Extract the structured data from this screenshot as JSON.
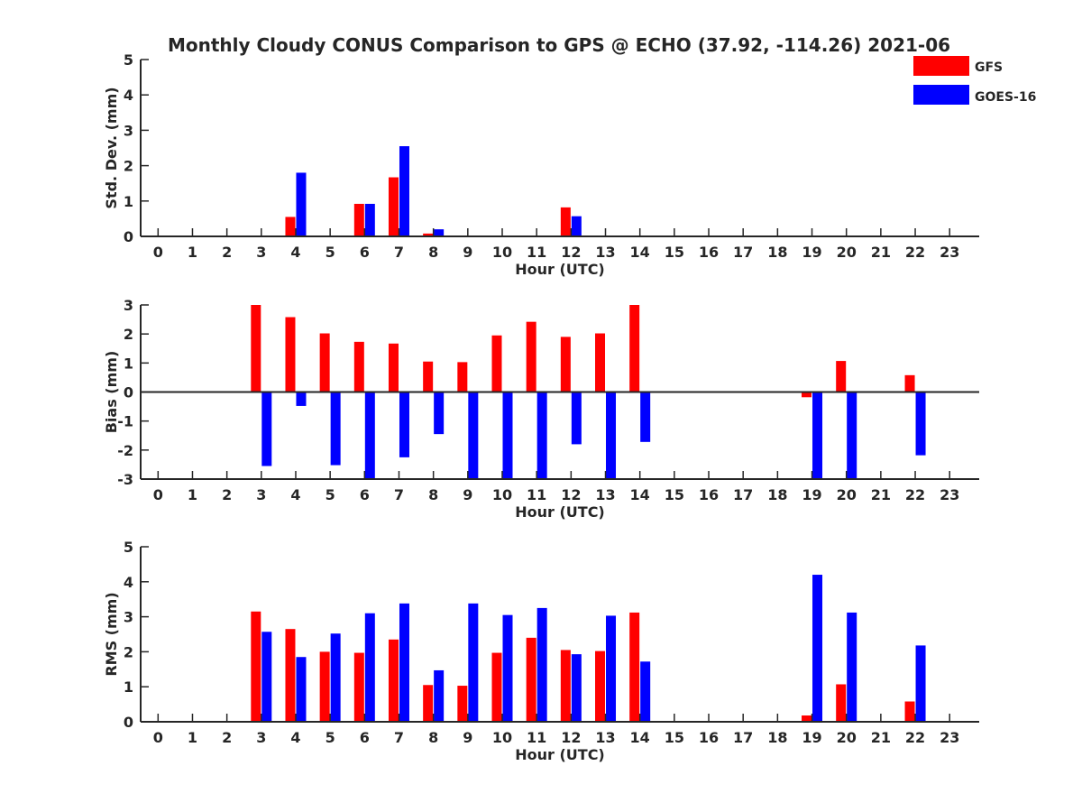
{
  "figure": {
    "title": "Monthly Cloudy CONUS Comparison to GPS @ ECHO (37.92, -114.26) 2021-06"
  },
  "legend": {
    "placement": "top-right",
    "entries": [
      {
        "label": "GFS",
        "color": "#ff0000"
      },
      {
        "label": "GOES-16",
        "color": "#0000ff"
      }
    ]
  },
  "chart_data": [
    {
      "type": "bar",
      "xlabel": "Hour (UTC)",
      "ylabel": "Std. Dev. (mm)",
      "ylim": [
        0,
        5
      ],
      "yticks": [
        0,
        1,
        2,
        3,
        4,
        5
      ],
      "categories": [
        0,
        1,
        2,
        3,
        4,
        5,
        6,
        7,
        8,
        9,
        10,
        11,
        12,
        13,
        14,
        15,
        16,
        17,
        18,
        19,
        20,
        21,
        22,
        23
      ],
      "series": [
        {
          "name": "GFS",
          "color": "#ff0000",
          "values": [
            null,
            null,
            null,
            null,
            0.55,
            null,
            0.92,
            1.67,
            0.08,
            null,
            null,
            null,
            0.82,
            null,
            null,
            null,
            null,
            null,
            null,
            null,
            null,
            null,
            null,
            null
          ]
        },
        {
          "name": "GOES-16",
          "color": "#0000ff",
          "values": [
            null,
            null,
            null,
            null,
            1.8,
            null,
            0.92,
            2.55,
            0.2,
            null,
            null,
            null,
            0.57,
            null,
            null,
            null,
            null,
            null,
            null,
            null,
            null,
            null,
            null,
            null
          ]
        }
      ]
    },
    {
      "type": "bar",
      "xlabel": "Hour (UTC)",
      "ylabel": "Bias (mm)",
      "ylim": [
        -3,
        3
      ],
      "yticks": [
        -3,
        -2,
        -1,
        0,
        1,
        2,
        3
      ],
      "zero_line": true,
      "categories": [
        0,
        1,
        2,
        3,
        4,
        5,
        6,
        7,
        8,
        9,
        10,
        11,
        12,
        13,
        14,
        15,
        16,
        17,
        18,
        19,
        20,
        21,
        22,
        23
      ],
      "series": [
        {
          "name": "GFS",
          "color": "#ff0000",
          "values": [
            null,
            null,
            null,
            3.0,
            2.58,
            2.02,
            1.73,
            1.67,
            1.05,
            1.03,
            1.95,
            2.42,
            1.9,
            2.02,
            3.0,
            null,
            null,
            null,
            null,
            -0.18,
            1.07,
            null,
            0.58,
            null
          ]
        },
        {
          "name": "GOES-16",
          "color": "#0000ff",
          "values": [
            null,
            null,
            null,
            -2.55,
            -0.48,
            -2.52,
            -3.0,
            -2.25,
            -1.45,
            -3.0,
            -3.0,
            -3.0,
            -1.8,
            -3.0,
            -1.72,
            null,
            null,
            null,
            null,
            -3.0,
            -3.0,
            null,
            -2.18,
            null
          ]
        }
      ]
    },
    {
      "type": "bar",
      "xlabel": "Hour (UTC)",
      "ylabel": "RMS (mm)",
      "ylim": [
        0,
        5
      ],
      "yticks": [
        0,
        1,
        2,
        3,
        4,
        5
      ],
      "categories": [
        0,
        1,
        2,
        3,
        4,
        5,
        6,
        7,
        8,
        9,
        10,
        11,
        12,
        13,
        14,
        15,
        16,
        17,
        18,
        19,
        20,
        21,
        22,
        23
      ],
      "series": [
        {
          "name": "GFS",
          "color": "#ff0000",
          "values": [
            null,
            null,
            null,
            3.15,
            2.65,
            2.0,
            1.97,
            2.35,
            1.05,
            1.03,
            1.97,
            2.4,
            2.05,
            2.02,
            3.12,
            null,
            null,
            null,
            null,
            0.18,
            1.07,
            null,
            0.58,
            null
          ]
        },
        {
          "name": "GOES-16",
          "color": "#0000ff",
          "values": [
            null,
            null,
            null,
            2.57,
            1.85,
            2.52,
            3.1,
            3.38,
            1.47,
            3.38,
            3.05,
            3.25,
            1.93,
            3.03,
            1.72,
            null,
            null,
            null,
            null,
            4.2,
            3.12,
            null,
            2.18,
            null
          ]
        }
      ]
    }
  ]
}
